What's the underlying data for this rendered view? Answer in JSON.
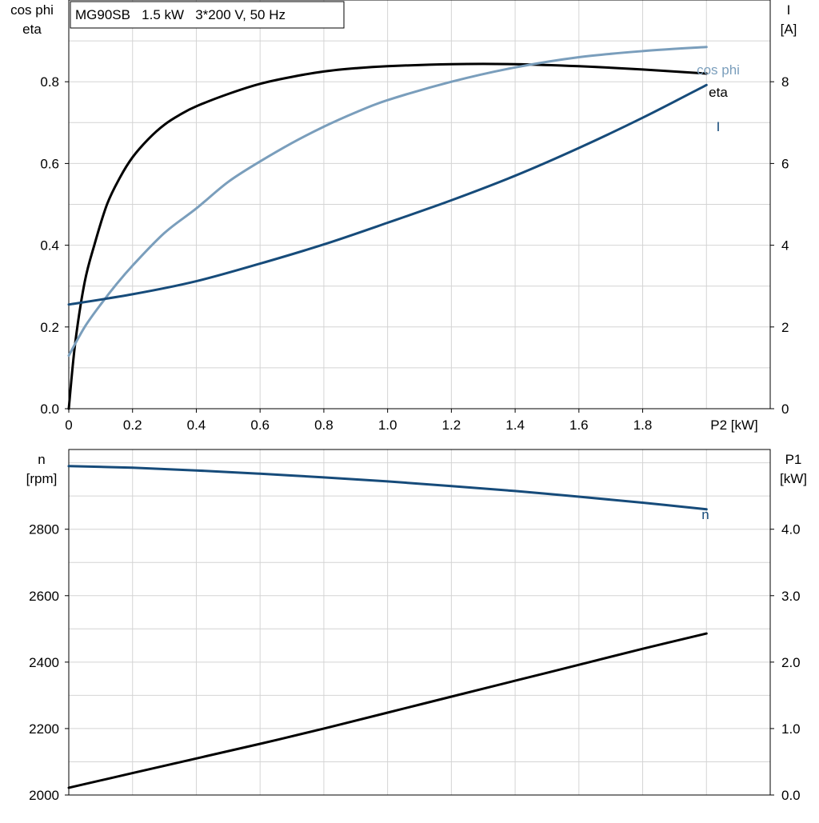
{
  "colors": {
    "eta": "#000000",
    "cos_phi": "#7a9ebc",
    "current": "#164b7a",
    "speed": "#164b7a",
    "p1": "#000000",
    "grid": "#d4d4d4"
  },
  "chart_data": [
    {
      "type": "line",
      "title": "MG90SB   1.5 kW   3*200 V, 50 Hz",
      "xlabel": "P2 [kW]",
      "ylabel_left": [
        "cos phi",
        "eta"
      ],
      "ylabel_right": [
        "I",
        "[A]"
      ],
      "xlim": [
        0,
        2.2
      ],
      "ylim_left": [
        0,
        1.0
      ],
      "ylim_right": [
        0,
        10
      ],
      "x_ticks": [
        "0",
        "0.2",
        "0.4",
        "0.6",
        "0.8",
        "1.0",
        "1.2",
        "1.4",
        "1.6",
        "1.8"
      ],
      "x_tick_values": [
        0,
        0.2,
        0.4,
        0.6,
        0.8,
        1.0,
        1.2,
        1.4,
        1.6,
        1.8
      ],
      "y_left_ticks": [
        "0.0",
        "0.2",
        "0.4",
        "0.6",
        "0.8"
      ],
      "y_left_tick_values": [
        0,
        0.2,
        0.4,
        0.6,
        0.8
      ],
      "y_right_ticks": [
        "0",
        "2",
        "4",
        "6",
        "8"
      ],
      "y_right_tick_values": [
        0,
        2,
        4,
        6,
        8
      ],
      "grid": true,
      "series": [
        {
          "name": "eta",
          "axis": "left",
          "color": "#000000",
          "x": [
            0,
            0.02,
            0.05,
            0.08,
            0.12,
            0.16,
            0.2,
            0.25,
            0.3,
            0.35,
            0.4,
            0.5,
            0.6,
            0.7,
            0.8,
            0.9,
            1.0,
            1.2,
            1.4,
            1.6,
            1.8,
            2.0
          ],
          "y": [
            0,
            0.16,
            0.31,
            0.4,
            0.5,
            0.565,
            0.615,
            0.66,
            0.695,
            0.72,
            0.74,
            0.77,
            0.795,
            0.812,
            0.825,
            0.833,
            0.838,
            0.843,
            0.843,
            0.838,
            0.83,
            0.82
          ]
        },
        {
          "name": "cos phi",
          "axis": "left",
          "color": "#7a9ebc",
          "x": [
            0,
            0.05,
            0.1,
            0.15,
            0.2,
            0.3,
            0.4,
            0.5,
            0.6,
            0.7,
            0.8,
            0.9,
            1.0,
            1.2,
            1.4,
            1.6,
            1.8,
            2.0
          ],
          "y": [
            0.13,
            0.2,
            0.255,
            0.305,
            0.35,
            0.43,
            0.49,
            0.555,
            0.605,
            0.65,
            0.69,
            0.725,
            0.755,
            0.8,
            0.835,
            0.86,
            0.875,
            0.885
          ]
        },
        {
          "name": "I",
          "axis": "right",
          "color": "#164b7a",
          "x": [
            0,
            0.2,
            0.4,
            0.6,
            0.8,
            1.0,
            1.2,
            1.4,
            1.6,
            1.8,
            2.0
          ],
          "y": [
            2.55,
            2.8,
            3.12,
            3.55,
            4.02,
            4.55,
            5.1,
            5.7,
            6.38,
            7.12,
            7.92
          ]
        }
      ],
      "annotations": [
        "cos phi",
        "eta",
        "I"
      ]
    },
    {
      "type": "line",
      "xlabel": "",
      "ylabel_left": [
        "n",
        "[rpm]"
      ],
      "ylabel_right": [
        "P1",
        "[kW]"
      ],
      "xlim": [
        0,
        2.2
      ],
      "ylim_left": [
        2000,
        3040
      ],
      "ylim_right": [
        0,
        5.2
      ],
      "y_left_ticks": [
        "2000",
        "2200",
        "2400",
        "2600",
        "2800"
      ],
      "y_left_tick_values": [
        2000,
        2200,
        2400,
        2600,
        2800
      ],
      "y_right_ticks": [
        "0.0",
        "1.0",
        "2.0",
        "3.0",
        "4.0"
      ],
      "y_right_tick_values": [
        0,
        1.0,
        2.0,
        3.0,
        4.0
      ],
      "grid": true,
      "series": [
        {
          "name": "n",
          "axis": "left",
          "color": "#164b7a",
          "x": [
            0,
            0.2,
            0.4,
            0.6,
            0.8,
            1.0,
            1.2,
            1.4,
            1.6,
            1.8,
            2.0
          ],
          "y": [
            2990,
            2985,
            2977,
            2967,
            2956,
            2944,
            2930,
            2915,
            2898,
            2880,
            2860
          ]
        },
        {
          "name": "P1",
          "axis": "right",
          "color": "#000000",
          "x": [
            0,
            0.2,
            0.4,
            0.6,
            0.8,
            1.0,
            1.2,
            1.4,
            1.6,
            1.8,
            2.0
          ],
          "y": [
            0.11,
            0.33,
            0.55,
            0.77,
            1.0,
            1.24,
            1.48,
            1.72,
            1.96,
            2.2,
            2.43
          ]
        }
      ],
      "annotations": [
        "n"
      ]
    }
  ]
}
